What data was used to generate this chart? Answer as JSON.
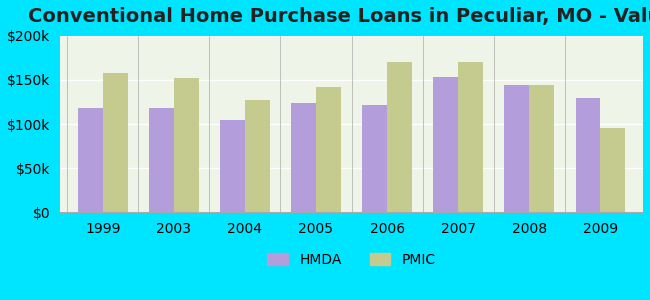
{
  "title": "Conventional Home Purchase Loans in Peculiar, MO - Value",
  "categories": [
    "1999",
    "2003",
    "2004",
    "2005",
    "2006",
    "2007",
    "2008",
    "2009"
  ],
  "hmda_values": [
    118000,
    118000,
    105000,
    124000,
    122000,
    153000,
    144000,
    130000
  ],
  "pmic_values": [
    158000,
    152000,
    127000,
    142000,
    170000,
    170000,
    144000,
    95000
  ],
  "hmda_color": "#b39ddb",
  "pmic_color": "#c5ca8e",
  "background_color": "#00e5ff",
  "plot_bg_color_left": "#e8f5e9",
  "plot_bg_color_right": "#f0f4e8",
  "ylim": [
    0,
    200000
  ],
  "yticks": [
    0,
    50000,
    100000,
    150000,
    200000
  ],
  "ytick_labels": [
    "$0",
    "$50k",
    "$100k",
    "$150k",
    "$200k"
  ],
  "xlabel": "",
  "ylabel": "",
  "legend_labels": [
    "HMDA",
    "PMIC"
  ],
  "title_fontsize": 14,
  "tick_fontsize": 10,
  "legend_fontsize": 10
}
